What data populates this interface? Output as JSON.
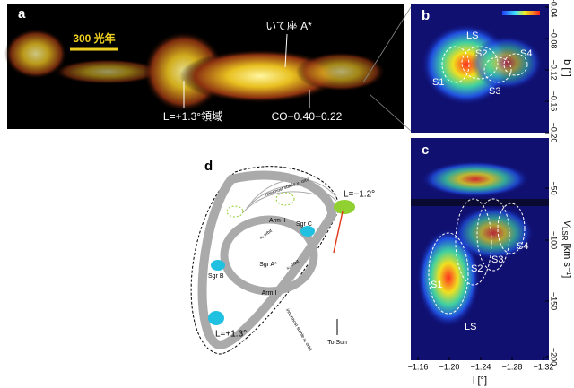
{
  "panel_a": {
    "label": "a",
    "scale_bar": "300 光年",
    "annotations": [
      "いて座 A*",
      "L=+1.3°領域",
      "CO−0.40−0.22"
    ]
  },
  "panel_b": {
    "label": "b",
    "y_axis_label": "b [°]",
    "yticks": [
      "−0.04",
      "−0.08",
      "−0.12",
      "−0.16",
      "−0.20"
    ],
    "regions": [
      "LS",
      "S2",
      "S4",
      "S1",
      "S3"
    ]
  },
  "panel_c": {
    "label": "c",
    "y_axis_label": {
      "symbol": "V",
      "subscript": "LSR",
      "unit": "[km s⁻¹]"
    },
    "yticks": [
      "−50",
      "−100",
      "−150",
      "−200"
    ],
    "xticks": [
      "−1.16",
      "−1.20",
      "−1.24",
      "−1.28",
      "−1.32"
    ],
    "x_axis_label": "l [°]",
    "regions": [
      "S1",
      "S2",
      "S3",
      "S4",
      "LS"
    ]
  },
  "panel_d": {
    "label": "d",
    "labels": [
      "Arm II",
      "Arm I",
      "Sgr C",
      "Sgr B",
      "Sgr A*",
      "L=−1.2°",
      "L=+1.3°",
      "To Sun",
      "innermost stable x₁ orbit",
      "innermost stable x₁ orbit",
      "x₂ orbit",
      "x₂ orbit"
    ]
  }
}
